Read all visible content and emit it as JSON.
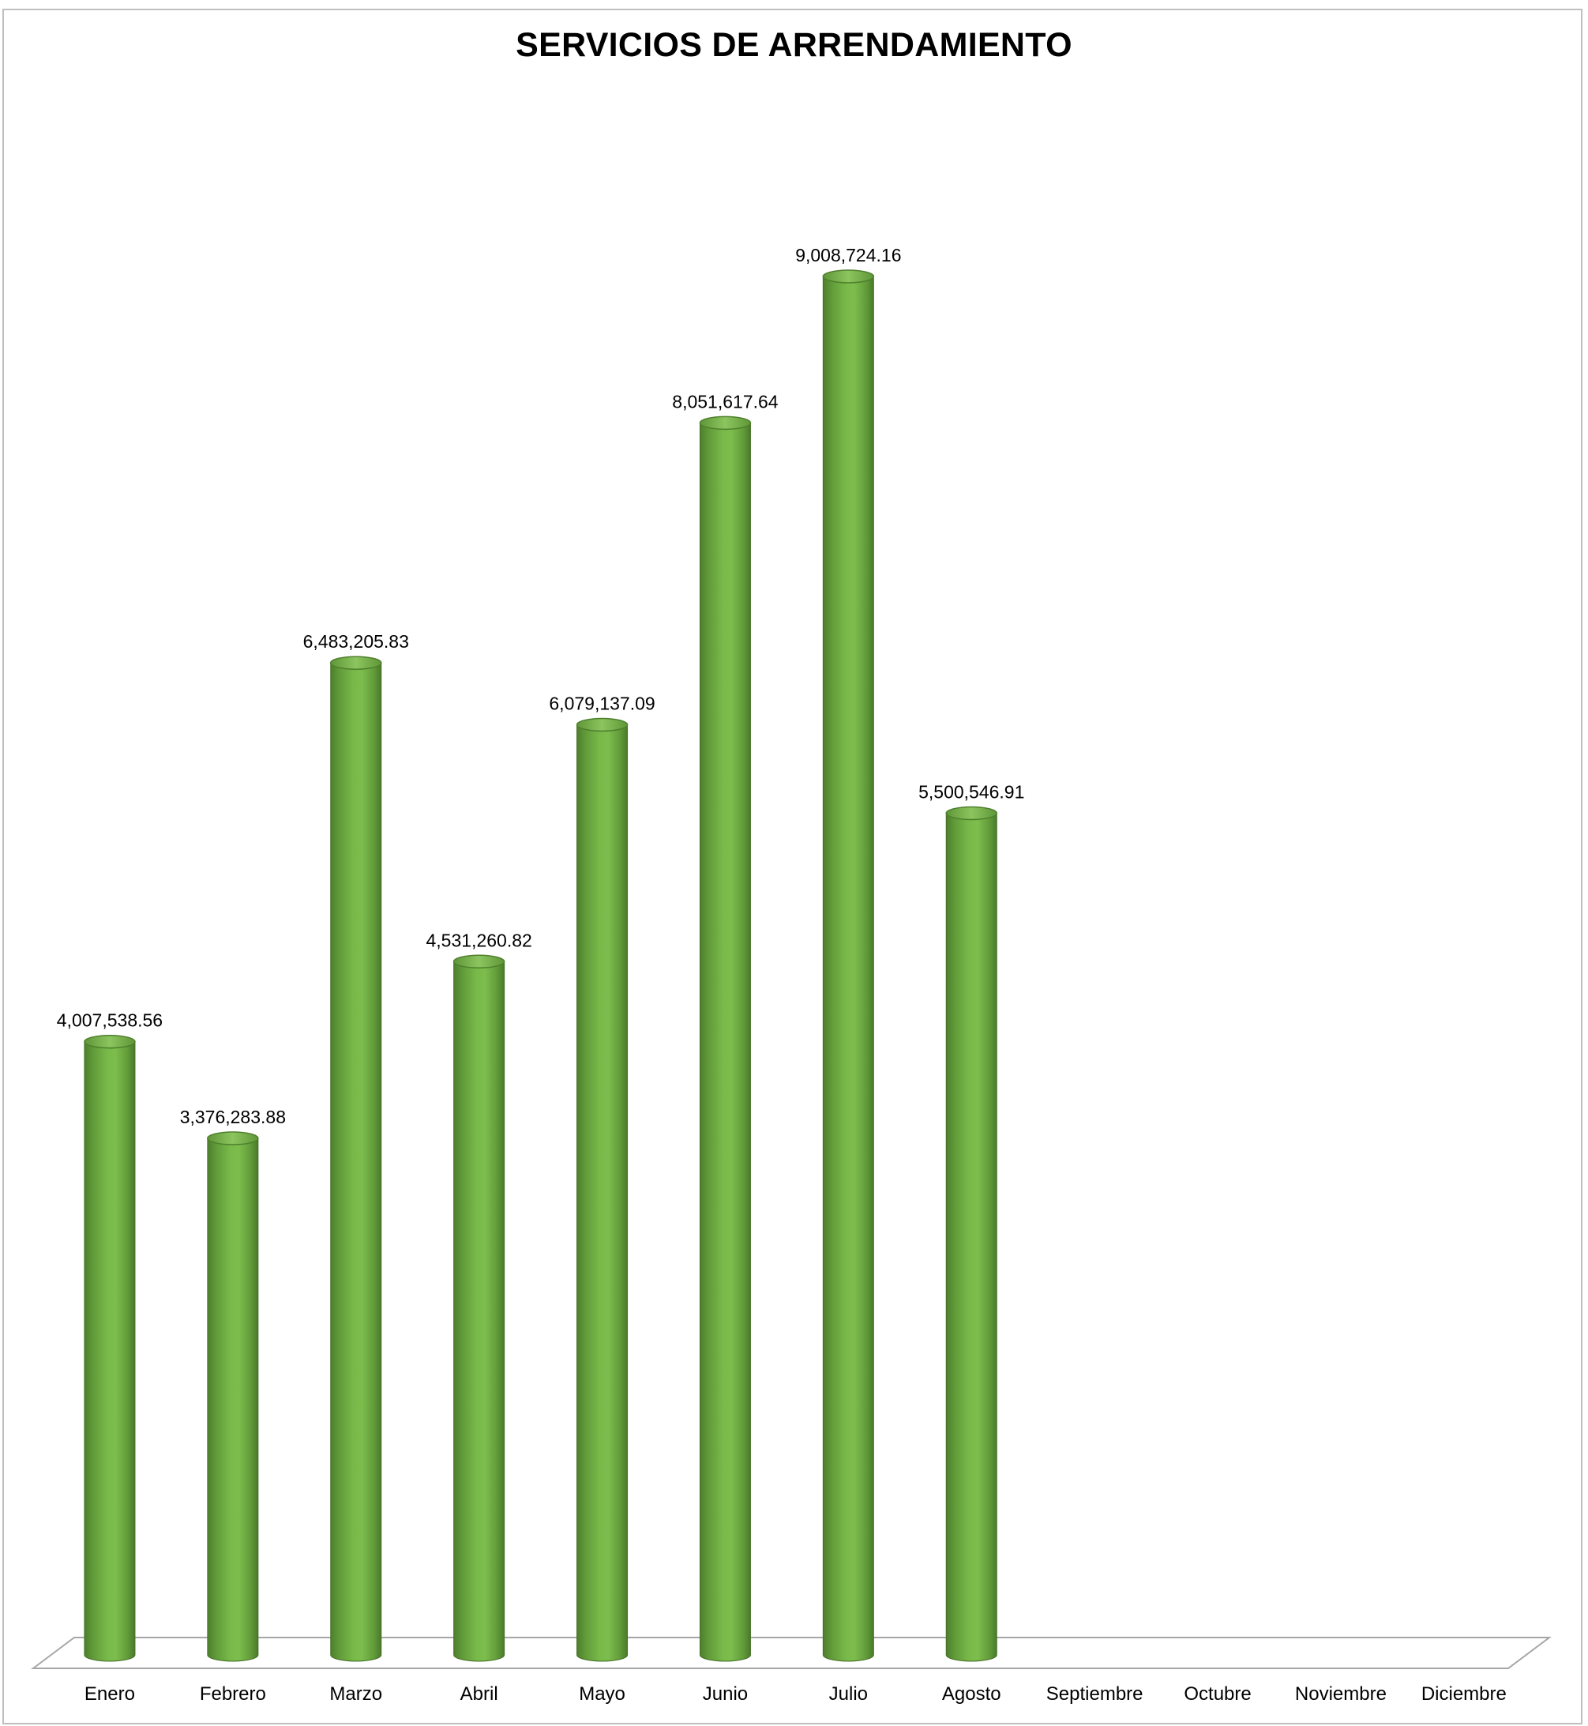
{
  "chart_data": {
    "type": "bar",
    "title": "SERVICIOS DE ARRENDAMIENTO",
    "xlabel": "",
    "ylabel": "",
    "categories": [
      "Enero",
      "Febrero",
      "Marzo",
      "Abril",
      "Mayo",
      "Junio",
      "Julio",
      "Agosto",
      "Septiembre",
      "Octubre",
      "Noviembre",
      "Diciembre"
    ],
    "values": [
      4007538.56,
      3376283.88,
      6483205.83,
      4531260.82,
      6079137.09,
      8051617.64,
      9008724.16,
      5500546.91,
      null,
      null,
      null,
      null
    ],
    "data_labels": [
      "4,007,538.56",
      "3,376,283.88",
      "6,483,205.83",
      "4,531,260.82",
      "6,079,137.09",
      "8,051,617.64",
      "9,008,724.16",
      "5,500,546.91",
      "",
      "",
      "",
      ""
    ],
    "ylim": [
      0,
      10500000
    ],
    "grid": false,
    "legend": "none",
    "shape": "cylinder",
    "colors": {
      "bar_dark": "#4e7f2c",
      "bar_mid": "#6fad45",
      "bar_light": "#7fc04f",
      "bar_top": "#8cc55f",
      "floor_line": "#a6a6a6",
      "frame": "#bfbfbf"
    }
  }
}
